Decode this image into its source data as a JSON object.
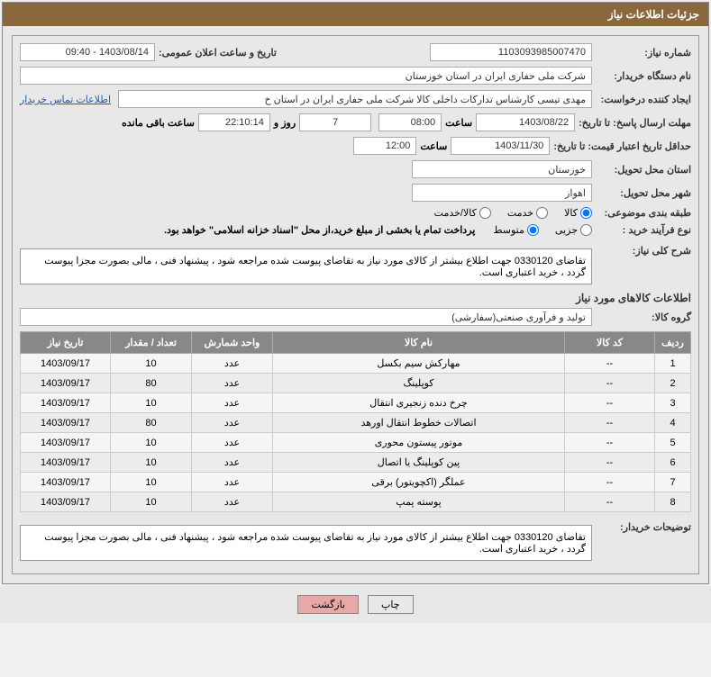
{
  "header": {
    "title": "جزئیات اطلاعات نیاز"
  },
  "fields": {
    "need_no_lbl": "شماره نیاز:",
    "need_no": "1103093985007470",
    "announce_lbl": "تاریخ و ساعت اعلان عمومی:",
    "announce": "1403/08/14 - 09:40",
    "buyer_lbl": "نام دستگاه خریدار:",
    "buyer": "شرکت ملی حفاری ایران در استان خوزستان",
    "requester_lbl": "ایجاد کننده درخواست:",
    "requester": "مهدی تیسی کارشناس تدارکات داخلی کالا شرکت ملی حفاری ایران در استان خ",
    "contact_link": "اطلاعات تماس خریدار",
    "deadline_lbl": "مهلت ارسال پاسخ: تا تاریخ:",
    "deadline_date": "1403/08/22",
    "time_lbl": "ساعت",
    "deadline_time": "08:00",
    "remain_days": "7",
    "days_and_lbl": "روز و",
    "remain_time": "22:10:14",
    "remain_lbl": "ساعت باقی مانده",
    "validity_lbl": "حداقل تاریخ اعتبار قیمت: تا تاریخ:",
    "validity_date": "1403/11/30",
    "validity_time": "12:00",
    "province_lbl": "استان محل تحویل:",
    "province": "خوزستان",
    "city_lbl": "شهر محل تحویل:",
    "city": "اهواز",
    "category_lbl": "طبقه بندی موضوعی:",
    "cat_goods": "کالا",
    "cat_service": "خدمت",
    "cat_both": "کالا/خدمت",
    "process_lbl": "نوع فرآیند خرید :",
    "proc_minor": "جزیی",
    "proc_medium": "متوسط",
    "payment_note": "پرداخت تمام یا بخشی از مبلغ خرید،از محل \"اسناد خزانه اسلامی\" خواهد بود.",
    "overview_lbl": "شرح کلی نیاز:",
    "overview": "تقاضای 0330120 جهت اطلاع بیشتر از کالای مورد نیاز به تقاضای پیوست شده مراجعه شود ، پیشنهاد فنی ، مالی بصورت مجزا پیوست گردد ، خرید اعتباری است.",
    "items_title": "اطلاعات کالاهای مورد نیاز",
    "group_lbl": "گروه کالا:",
    "group": "تولید و فرآوری صنعتی(سفارشی)",
    "buyer_desc_lbl": "توضیحات خریدار:",
    "buyer_desc": "تقاضای 0330120 جهت اطلاع بیشتر از کالای مورد نیاز به تقاضای پیوست شده مراجعه شود ، پیشنهاد فنی ، مالی بصورت مجزا پیوست گردد ، خرید اعتباری است."
  },
  "table": {
    "h_idx": "ردیف",
    "h_code": "کد کالا",
    "h_name": "نام کالا",
    "h_unit": "واحد شمارش",
    "h_qty": "تعداد / مقدار",
    "h_date": "تاریخ نیاز",
    "rows": [
      {
        "idx": "1",
        "code": "--",
        "name": "مهارکش سیم بکسل",
        "unit": "عدد",
        "qty": "10",
        "date": "1403/09/17"
      },
      {
        "idx": "2",
        "code": "--",
        "name": "کوپلینگ",
        "unit": "عدد",
        "qty": "80",
        "date": "1403/09/17"
      },
      {
        "idx": "3",
        "code": "--",
        "name": "چرخ دنده زنجیری انتقال",
        "unit": "عدد",
        "qty": "10",
        "date": "1403/09/17"
      },
      {
        "idx": "4",
        "code": "--",
        "name": "اتصالات خطوط انتقال اورهد",
        "unit": "عدد",
        "qty": "80",
        "date": "1403/09/17"
      },
      {
        "idx": "5",
        "code": "--",
        "name": "موتور پیستون محوری",
        "unit": "عدد",
        "qty": "10",
        "date": "1403/09/17"
      },
      {
        "idx": "6",
        "code": "--",
        "name": "پین کوپلینگ یا اتصال",
        "unit": "عدد",
        "qty": "10",
        "date": "1403/09/17"
      },
      {
        "idx": "7",
        "code": "--",
        "name": "عملگر (اکچویتور) برقی",
        "unit": "عدد",
        "qty": "10",
        "date": "1403/09/17"
      },
      {
        "idx": "8",
        "code": "--",
        "name": "پوسته پمپ",
        "unit": "عدد",
        "qty": "10",
        "date": "1403/09/17"
      }
    ]
  },
  "buttons": {
    "print": "چاپ",
    "back": "بازگشت"
  }
}
